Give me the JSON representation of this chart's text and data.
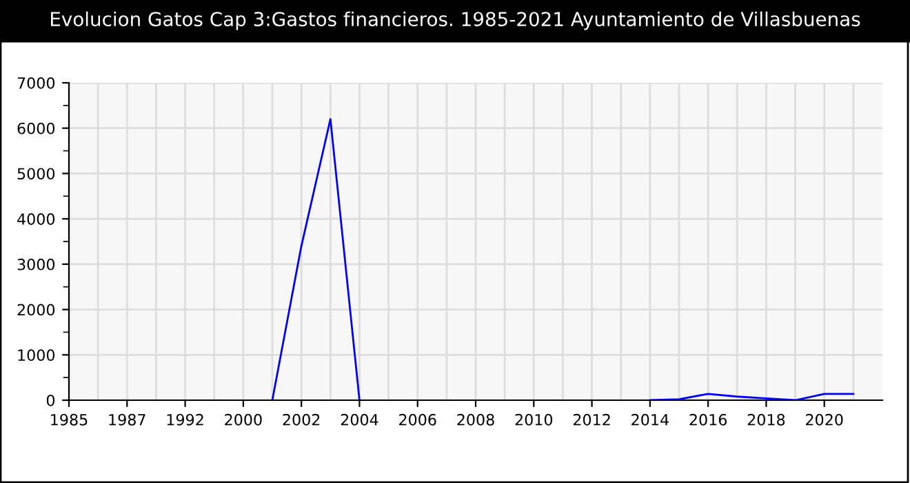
{
  "chart_data": {
    "type": "line",
    "title": "Evolucion Gatos Cap 3:Gastos financieros. 1985-2021 Ayuntamiento de Villasbuenas",
    "categories": [
      "1985",
      null,
      "1987",
      null,
      "1992",
      null,
      "2000",
      null,
      "2002",
      null,
      "2004",
      null,
      "2006",
      null,
      "2008",
      null,
      "2010",
      null,
      "2012",
      null,
      "2014",
      null,
      "2016",
      null,
      "2018",
      null,
      "2020",
      null
    ],
    "series": [
      {
        "color": "#0000ff",
        "values": [
          null,
          null,
          null,
          null,
          null,
          null,
          null,
          0,
          3400,
          6200,
          0,
          null,
          null,
          null,
          null,
          null,
          null,
          null,
          null,
          null,
          0,
          20,
          140,
          80,
          40,
          0,
          140,
          140
        ]
      }
    ],
    "ylim": [
      0,
      7000
    ],
    "yticks": [
      0,
      1000,
      2000,
      3000,
      4000,
      5000,
      6000,
      7000
    ],
    "grid": true,
    "marker": "none",
    "line_style": "solid"
  }
}
